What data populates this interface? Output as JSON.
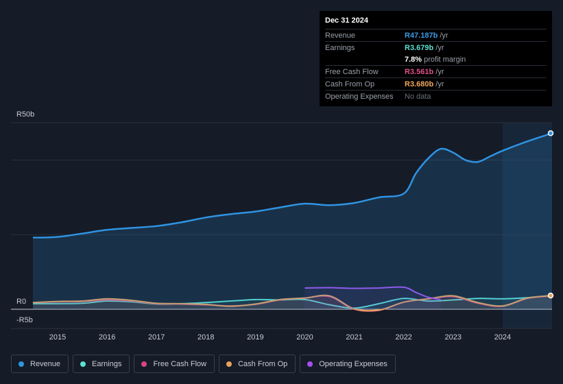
{
  "tooltip": {
    "date": "Dec 31 2024",
    "rows": [
      {
        "label": "Revenue",
        "value": "R47.187b",
        "unit": " /yr",
        "color": "#3b9be6"
      },
      {
        "label": "Earnings",
        "value": "R3.679b",
        "unit": " /yr",
        "color": "#5ce0d0"
      },
      {
        "label": "",
        "value": "7.8%",
        "unit": " profit margin",
        "color": "#ffffff"
      },
      {
        "label": "Free Cash Flow",
        "value": "R3.561b",
        "unit": " /yr",
        "color": "#e0508a"
      },
      {
        "label": "Cash From Op",
        "value": "R3.680b",
        "unit": " /yr",
        "color": "#f0a860"
      },
      {
        "label": "Operating Expenses",
        "value": "No data",
        "unit": "",
        "color": "#6b717b"
      }
    ]
  },
  "legend": [
    {
      "label": "Revenue",
      "color": "#2f94e3"
    },
    {
      "label": "Earnings",
      "color": "#5ce0d0"
    },
    {
      "label": "Free Cash Flow",
      "color": "#d9467e"
    },
    {
      "label": "Cash From Op",
      "color": "#e8a25a"
    },
    {
      "label": "Operating Expenses",
      "color": "#a64ef0"
    }
  ],
  "chart_data": {
    "type": "line",
    "ylim": [
      -5,
      50
    ],
    "ytick_labels": [
      {
        "value": 50,
        "label": "R50b"
      },
      {
        "value": 0,
        "label": "R0"
      },
      {
        "value": -5,
        "label": "-R5b"
      }
    ],
    "xticks": [
      2015,
      2016,
      2017,
      2018,
      2019,
      2020,
      2021,
      2022,
      2023,
      2024
    ],
    "xlim": [
      2014.55,
      2025.0
    ],
    "forecast_start": 2024.0,
    "series": [
      {
        "name": "Revenue",
        "color": "#2f94e3",
        "fill": true,
        "x": [
          2014.5,
          2015.0,
          2015.5,
          2016.0,
          2016.5,
          2017.0,
          2017.5,
          2018.0,
          2018.5,
          2019.0,
          2019.5,
          2020.0,
          2020.5,
          2021.0,
          2021.5,
          2022.0,
          2022.25,
          2022.5,
          2022.75,
          2023.0,
          2023.25,
          2023.5,
          2023.75,
          2024.0,
          2024.5,
          2025.0
        ],
        "y": [
          19.2,
          19.4,
          20.3,
          21.3,
          21.8,
          22.3,
          23.3,
          24.6,
          25.5,
          26.2,
          27.3,
          28.3,
          27.9,
          28.5,
          30.0,
          31.0,
          36.5,
          40.5,
          43.0,
          42.0,
          40.0,
          39.5,
          41.0,
          42.5,
          45.0,
          47.187
        ]
      },
      {
        "name": "Earnings",
        "color": "#5ce0d0",
        "x": [
          2014.5,
          2015.0,
          2015.5,
          2016.0,
          2016.5,
          2017.0,
          2017.5,
          2018.0,
          2018.5,
          2019.0,
          2019.5,
          2020.0,
          2020.5,
          2021.0,
          2021.5,
          2022.0,
          2022.5,
          2023.0,
          2023.5,
          2024.0,
          2024.5,
          2025.0
        ],
        "y": [
          1.5,
          1.5,
          1.6,
          2.2,
          2.0,
          1.4,
          1.5,
          1.8,
          2.2,
          2.6,
          2.5,
          2.6,
          1.2,
          0.3,
          1.5,
          2.9,
          2.2,
          2.5,
          2.9,
          2.8,
          3.1,
          3.679
        ]
      },
      {
        "name": "Free Cash Flow",
        "color": "#d9467e",
        "x": [
          2014.5,
          2015.0,
          2015.5,
          2016.0,
          2016.5,
          2017.0,
          2017.5,
          2018.0,
          2018.5,
          2019.0,
          2019.5,
          2020.0,
          2020.5,
          2021.0,
          2021.5,
          2022.0,
          2022.5,
          2023.0,
          2023.5,
          2024.0,
          2024.5,
          2025.0
        ],
        "y": [
          1.8,
          2.0,
          2.1,
          2.5,
          2.2,
          1.5,
          1.4,
          1.2,
          0.9,
          1.3,
          2.5,
          3.0,
          3.4,
          0.0,
          -0.3,
          1.9,
          2.8,
          3.4,
          1.6,
          0.8,
          2.9,
          3.561
        ]
      },
      {
        "name": "Cash From Op",
        "color": "#e8a25a",
        "x": [
          2014.5,
          2015.0,
          2015.5,
          2016.0,
          2016.5,
          2017.0,
          2017.5,
          2018.0,
          2018.5,
          2019.0,
          2019.5,
          2020.0,
          2020.5,
          2021.0,
          2021.5,
          2022.0,
          2022.5,
          2023.0,
          2023.5,
          2024.0,
          2024.5,
          2025.0
        ],
        "y": [
          1.8,
          2.1,
          2.2,
          2.8,
          2.4,
          1.6,
          1.5,
          1.3,
          0.8,
          1.4,
          2.6,
          3.0,
          3.6,
          0.1,
          -0.2,
          1.9,
          2.8,
          3.6,
          1.8,
          0.9,
          3.0,
          3.68
        ]
      },
      {
        "name": "Operating Expenses",
        "color": "#a64ef0",
        "x": [
          2020.0,
          2020.5,
          2021.0,
          2021.5,
          2022.0,
          2022.25,
          2022.5,
          2022.75
        ],
        "y": [
          5.7,
          5.8,
          5.6,
          5.7,
          5.9,
          4.5,
          3.2,
          2.6
        ]
      }
    ]
  }
}
